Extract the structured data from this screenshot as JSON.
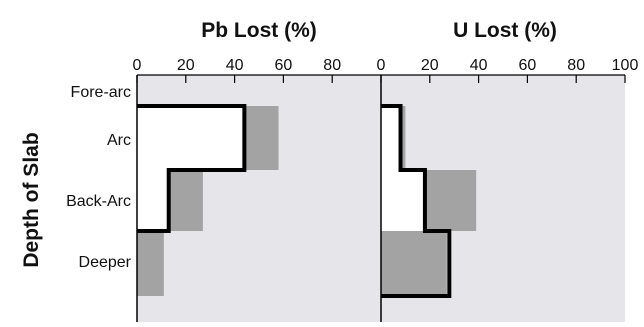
{
  "colors": {
    "panel_bg": "#e6e6ea",
    "range_fill": "#a3a3a3",
    "data_fill": "#ffffff",
    "data_line": "#000000"
  },
  "ylabel": "Depth of Slab",
  "chart_data": [
    {
      "type": "bar",
      "title": "Pb Lost (%)",
      "xlabel": "Pb Lost (%)",
      "ylabel": "Depth of Slab",
      "xlim": [
        0,
        100
      ],
      "xticks": [
        "0",
        "20",
        "40",
        "60",
        "80"
      ],
      "categories": [
        "Fore-arc",
        "Arc",
        "Back-Arc",
        "Deeper"
      ],
      "ranges": [
        {
          "category": "Arc",
          "min": 34,
          "max": 58
        },
        {
          "category": "Back-Arc",
          "min": 13,
          "max": 27
        },
        {
          "category": "Deeper",
          "min": 0,
          "max": 11
        }
      ],
      "values": [
        0,
        44,
        13,
        0
      ],
      "grid": false
    },
    {
      "type": "bar",
      "title": "U Lost (%)",
      "xlabel": "U Lost (%)",
      "ylabel": "Depth of Slab",
      "xlim": [
        0,
        100
      ],
      "xticks": [
        "0",
        "20",
        "40",
        "60",
        "80",
        "100"
      ],
      "categories": [
        "Fore-arc",
        "Arc",
        "Back-Arc",
        "Deeper"
      ],
      "ranges": [
        {
          "category": "Arc",
          "min": 0,
          "max": 10
        },
        {
          "category": "Back-Arc",
          "min": 18,
          "max": 39
        },
        {
          "category": "Deeper",
          "min": 0,
          "max": 27
        }
      ],
      "values": [
        0,
        8,
        18,
        28
      ],
      "grid": false
    }
  ]
}
